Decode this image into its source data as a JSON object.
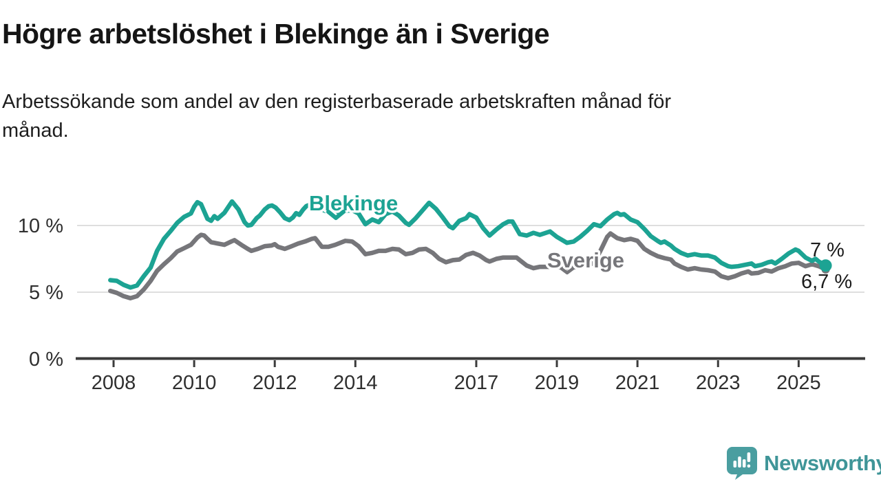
{
  "header": {
    "title": "Högre arbetslöshet i Blekinge än i Sverige",
    "subtitle_lines": [
      "Arbetssökande som andel av den registerbaserade arbetskraften månad för",
      "månad."
    ]
  },
  "footer": {
    "brand": "Newsworthy",
    "brand_color": "#3f9598",
    "icon": "newsworthy-bar-chart-speech-bubble",
    "icon_color": "#4a9ea0"
  },
  "chart_data": {
    "type": "line",
    "title": "Högre arbetslöshet i Blekinge än i Sverige",
    "subtitle": "Arbetssökande som andel av den registerbaserade arbetskraften månad för månad.",
    "xlabel": "",
    "ylabel": "",
    "x_axis": {
      "range": [
        2007.6,
        2026.5
      ],
      "ticks": [
        {
          "value": 2008,
          "label": "2008"
        },
        {
          "value": 2010,
          "label": "2010"
        },
        {
          "value": 2012,
          "label": "2012"
        },
        {
          "value": 2014,
          "label": "2014"
        },
        {
          "value": 2017,
          "label": "2017"
        },
        {
          "value": 2019,
          "label": "2019"
        },
        {
          "value": 2021,
          "label": "2021"
        },
        {
          "value": 2023,
          "label": "2023"
        },
        {
          "value": 2025,
          "label": "2025"
        }
      ]
    },
    "y_axis": {
      "range": [
        0,
        12.6
      ],
      "unit": "%",
      "ticks": [
        {
          "value": 0,
          "label": "0 %"
        },
        {
          "value": 5,
          "label": "5 %"
        },
        {
          "value": 10,
          "label": "10 %"
        }
      ],
      "gridlines": [
        5,
        10
      ]
    },
    "legend_position": "inline-labels",
    "grid": true,
    "series": [
      {
        "name": "Blekinge",
        "color": "#1ca393",
        "end_label": "7 %",
        "end_value": 7.0,
        "points": [
          [
            2007.92,
            5.9
          ],
          [
            2008.08,
            5.85
          ],
          [
            2008.25,
            5.55
          ],
          [
            2008.42,
            5.35
          ],
          [
            2008.58,
            5.5
          ],
          [
            2008.75,
            6.2
          ],
          [
            2008.92,
            6.85
          ],
          [
            2009.08,
            8.1
          ],
          [
            2009.25,
            9.0
          ],
          [
            2009.42,
            9.6
          ],
          [
            2009.58,
            10.2
          ],
          [
            2009.75,
            10.65
          ],
          [
            2009.92,
            10.9
          ],
          [
            2010.0,
            11.4
          ],
          [
            2010.08,
            11.75
          ],
          [
            2010.17,
            11.6
          ],
          [
            2010.33,
            10.5
          ],
          [
            2010.42,
            10.35
          ],
          [
            2010.5,
            10.7
          ],
          [
            2010.58,
            10.5
          ],
          [
            2010.75,
            10.95
          ],
          [
            2010.94,
            11.8
          ],
          [
            2011.1,
            11.2
          ],
          [
            2011.25,
            10.25
          ],
          [
            2011.33,
            10.0
          ],
          [
            2011.42,
            10.05
          ],
          [
            2011.55,
            10.55
          ],
          [
            2011.63,
            10.75
          ],
          [
            2011.75,
            11.2
          ],
          [
            2011.85,
            11.45
          ],
          [
            2011.93,
            11.5
          ],
          [
            2012.02,
            11.35
          ],
          [
            2012.13,
            11.0
          ],
          [
            2012.25,
            10.55
          ],
          [
            2012.36,
            10.4
          ],
          [
            2012.45,
            10.6
          ],
          [
            2012.53,
            10.93
          ],
          [
            2012.61,
            10.8
          ],
          [
            2012.7,
            11.18
          ],
          [
            2012.78,
            11.45
          ],
          [
            2012.9,
            11.6
          ],
          [
            2013.08,
            11.35
          ],
          [
            2013.25,
            11.1
          ],
          [
            2013.42,
            11.35
          ],
          [
            2013.58,
            11.0
          ],
          [
            2013.75,
            11.1
          ],
          [
            2013.92,
            11.15
          ],
          [
            2014.08,
            10.9
          ],
          [
            2014.25,
            10.1
          ],
          [
            2014.42,
            10.45
          ],
          [
            2014.58,
            10.25
          ],
          [
            2014.75,
            10.85
          ],
          [
            2014.92,
            11.05
          ],
          [
            2015.08,
            10.75
          ],
          [
            2015.25,
            10.2
          ],
          [
            2015.33,
            10.05
          ],
          [
            2015.5,
            10.55
          ],
          [
            2015.67,
            11.15
          ],
          [
            2015.83,
            11.7
          ],
          [
            2016.0,
            11.25
          ],
          [
            2016.17,
            10.6
          ],
          [
            2016.33,
            9.95
          ],
          [
            2016.42,
            9.8
          ],
          [
            2016.58,
            10.35
          ],
          [
            2016.75,
            10.55
          ],
          [
            2016.83,
            10.85
          ],
          [
            2017.0,
            10.6
          ],
          [
            2017.17,
            9.8
          ],
          [
            2017.33,
            9.25
          ],
          [
            2017.5,
            9.7
          ],
          [
            2017.67,
            10.1
          ],
          [
            2017.8,
            10.3
          ],
          [
            2017.9,
            10.3
          ],
          [
            2018.08,
            9.35
          ],
          [
            2018.25,
            9.25
          ],
          [
            2018.42,
            9.45
          ],
          [
            2018.58,
            9.3
          ],
          [
            2018.83,
            9.55
          ],
          [
            2019.0,
            9.15
          ],
          [
            2019.25,
            8.7
          ],
          [
            2019.42,
            8.8
          ],
          [
            2019.58,
            9.15
          ],
          [
            2019.75,
            9.6
          ],
          [
            2019.92,
            10.1
          ],
          [
            2020.08,
            9.95
          ],
          [
            2020.25,
            10.45
          ],
          [
            2020.42,
            10.85
          ],
          [
            2020.5,
            10.95
          ],
          [
            2020.58,
            10.8
          ],
          [
            2020.67,
            10.85
          ],
          [
            2020.83,
            10.45
          ],
          [
            2021.0,
            10.25
          ],
          [
            2021.17,
            9.75
          ],
          [
            2021.33,
            9.2
          ],
          [
            2021.5,
            8.85
          ],
          [
            2021.58,
            8.7
          ],
          [
            2021.67,
            8.8
          ],
          [
            2021.83,
            8.5
          ],
          [
            2021.92,
            8.25
          ],
          [
            2022.08,
            7.95
          ],
          [
            2022.25,
            7.75
          ],
          [
            2022.42,
            7.85
          ],
          [
            2022.58,
            7.75
          ],
          [
            2022.75,
            7.75
          ],
          [
            2022.92,
            7.6
          ],
          [
            2023.08,
            7.2
          ],
          [
            2023.25,
            6.95
          ],
          [
            2023.33,
            6.9
          ],
          [
            2023.5,
            6.95
          ],
          [
            2023.67,
            7.05
          ],
          [
            2023.83,
            7.15
          ],
          [
            2023.92,
            6.95
          ],
          [
            2024.08,
            7.05
          ],
          [
            2024.25,
            7.25
          ],
          [
            2024.33,
            7.3
          ],
          [
            2024.42,
            7.15
          ],
          [
            2024.58,
            7.5
          ],
          [
            2024.75,
            7.9
          ],
          [
            2024.92,
            8.2
          ],
          [
            2025.0,
            8.1
          ],
          [
            2025.17,
            7.6
          ],
          [
            2025.33,
            7.35
          ],
          [
            2025.42,
            7.5
          ],
          [
            2025.5,
            7.3
          ],
          [
            2025.67,
            7.0
          ]
        ]
      },
      {
        "name": "Sverige",
        "color": "#76767a",
        "end_label": "6,7 %",
        "end_value": 6.7,
        "points": [
          [
            2007.92,
            5.1
          ],
          [
            2008.08,
            4.95
          ],
          [
            2008.25,
            4.7
          ],
          [
            2008.42,
            4.55
          ],
          [
            2008.58,
            4.7
          ],
          [
            2008.75,
            5.2
          ],
          [
            2008.92,
            5.85
          ],
          [
            2009.08,
            6.6
          ],
          [
            2009.25,
            7.1
          ],
          [
            2009.42,
            7.55
          ],
          [
            2009.58,
            8.05
          ],
          [
            2009.75,
            8.3
          ],
          [
            2009.92,
            8.55
          ],
          [
            2010.08,
            9.1
          ],
          [
            2010.17,
            9.3
          ],
          [
            2010.25,
            9.25
          ],
          [
            2010.33,
            9.0
          ],
          [
            2010.42,
            8.75
          ],
          [
            2010.5,
            8.7
          ],
          [
            2010.58,
            8.65
          ],
          [
            2010.75,
            8.55
          ],
          [
            2010.92,
            8.8
          ],
          [
            2011.0,
            8.9
          ],
          [
            2011.17,
            8.55
          ],
          [
            2011.33,
            8.25
          ],
          [
            2011.42,
            8.1
          ],
          [
            2011.58,
            8.25
          ],
          [
            2011.75,
            8.45
          ],
          [
            2011.92,
            8.5
          ],
          [
            2012.0,
            8.6
          ],
          [
            2012.08,
            8.4
          ],
          [
            2012.25,
            8.25
          ],
          [
            2012.42,
            8.45
          ],
          [
            2012.58,
            8.65
          ],
          [
            2012.75,
            8.8
          ],
          [
            2012.92,
            9.0
          ],
          [
            2013.0,
            9.05
          ],
          [
            2013.17,
            8.4
          ],
          [
            2013.33,
            8.4
          ],
          [
            2013.5,
            8.55
          ],
          [
            2013.75,
            8.85
          ],
          [
            2013.92,
            8.8
          ],
          [
            2014.08,
            8.45
          ],
          [
            2014.25,
            7.85
          ],
          [
            2014.42,
            7.95
          ],
          [
            2014.58,
            8.1
          ],
          [
            2014.75,
            8.1
          ],
          [
            2014.92,
            8.25
          ],
          [
            2015.08,
            8.2
          ],
          [
            2015.25,
            7.85
          ],
          [
            2015.42,
            7.95
          ],
          [
            2015.58,
            8.2
          ],
          [
            2015.75,
            8.25
          ],
          [
            2015.92,
            7.95
          ],
          [
            2016.08,
            7.5
          ],
          [
            2016.25,
            7.25
          ],
          [
            2016.42,
            7.4
          ],
          [
            2016.58,
            7.45
          ],
          [
            2016.75,
            7.8
          ],
          [
            2016.92,
            7.95
          ],
          [
            2017.08,
            7.75
          ],
          [
            2017.25,
            7.4
          ],
          [
            2017.33,
            7.3
          ],
          [
            2017.5,
            7.5
          ],
          [
            2017.67,
            7.6
          ],
          [
            2017.83,
            7.6
          ],
          [
            2018.0,
            7.6
          ],
          [
            2018.08,
            7.4
          ],
          [
            2018.25,
            7.0
          ],
          [
            2018.42,
            6.8
          ],
          [
            2018.58,
            6.9
          ],
          [
            2018.75,
            6.9
          ],
          [
            2019.0,
            6.9
          ],
          [
            2019.25,
            6.8
          ],
          [
            2019.5,
            6.9
          ],
          [
            2019.75,
            7.0
          ],
          [
            2019.92,
            7.2
          ],
          [
            2020.08,
            8.1
          ],
          [
            2020.25,
            9.15
          ],
          [
            2020.33,
            9.4
          ],
          [
            2020.5,
            9.05
          ],
          [
            2020.67,
            8.9
          ],
          [
            2020.83,
            9.0
          ],
          [
            2021.0,
            8.85
          ],
          [
            2021.17,
            8.25
          ],
          [
            2021.33,
            7.95
          ],
          [
            2021.5,
            7.7
          ],
          [
            2021.67,
            7.55
          ],
          [
            2021.83,
            7.45
          ],
          [
            2021.92,
            7.15
          ],
          [
            2022.08,
            6.9
          ],
          [
            2022.25,
            6.7
          ],
          [
            2022.42,
            6.8
          ],
          [
            2022.58,
            6.7
          ],
          [
            2022.75,
            6.65
          ],
          [
            2022.92,
            6.55
          ],
          [
            2023.08,
            6.2
          ],
          [
            2023.25,
            6.05
          ],
          [
            2023.42,
            6.2
          ],
          [
            2023.58,
            6.4
          ],
          [
            2023.75,
            6.55
          ],
          [
            2023.83,
            6.4
          ],
          [
            2024.0,
            6.45
          ],
          [
            2024.17,
            6.65
          ],
          [
            2024.33,
            6.55
          ],
          [
            2024.5,
            6.8
          ],
          [
            2024.67,
            6.95
          ],
          [
            2024.83,
            7.15
          ],
          [
            2025.0,
            7.2
          ],
          [
            2025.17,
            6.95
          ],
          [
            2025.33,
            7.1
          ],
          [
            2025.5,
            6.95
          ],
          [
            2025.67,
            6.7
          ]
        ]
      }
    ]
  }
}
